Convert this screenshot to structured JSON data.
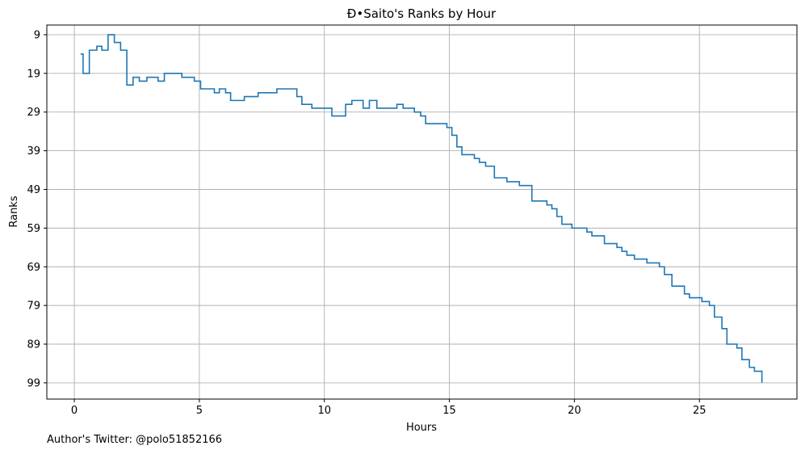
{
  "chart_data": {
    "type": "line",
    "drawstyle": "steps-post",
    "title": "Ð•Saito's Ranks by Hour",
    "xlabel": "Hours",
    "ylabel": "Ranks",
    "xlim": [
      -1.1,
      28.9
    ],
    "ylim": [
      103.2,
      6.5
    ],
    "y_inverted": true,
    "xticks": [
      0,
      5,
      10,
      15,
      20,
      25
    ],
    "yticks": [
      9,
      19,
      29,
      39,
      49,
      59,
      69,
      79,
      89,
      99
    ],
    "grid": true,
    "line_color": "#1f77b4",
    "series": [
      {
        "x": [
          0.25,
          0.35,
          0.6,
          0.9,
          1.1,
          1.35,
          1.6,
          1.85,
          2.1,
          2.35,
          2.6,
          2.9,
          3.35,
          3.6,
          4.3,
          4.8,
          5.05,
          5.6,
          5.8,
          6.05,
          6.25,
          6.8,
          7.35,
          8.1,
          8.9,
          9.1,
          9.5,
          10.3,
          10.85,
          11.1,
          11.55,
          11.8,
          12.1,
          12.9,
          13.15,
          13.6,
          13.85,
          14.05,
          14.9,
          15.1,
          15.3,
          15.5,
          16.0,
          16.2,
          16.45,
          16.8,
          17.3,
          17.8,
          18.3,
          18.9,
          19.1,
          19.3,
          19.5,
          19.9,
          20.5,
          20.7,
          21.2,
          21.7,
          21.9,
          22.1,
          22.4,
          22.9,
          23.4,
          23.6,
          23.9,
          24.4,
          24.6,
          25.1,
          25.4,
          25.6,
          25.9,
          26.1,
          26.5,
          26.7,
          27.0,
          27.2,
          27.5
        ],
        "y": [
          14,
          19,
          13,
          12,
          13,
          9,
          11,
          13,
          22,
          20,
          21,
          20,
          21,
          19,
          20,
          21,
          23,
          24,
          23,
          24,
          26,
          25,
          24,
          23,
          25,
          27,
          28,
          30,
          27,
          26,
          28,
          26,
          28,
          27,
          28,
          29,
          30,
          32,
          33,
          35,
          38,
          40,
          41,
          42,
          43,
          46,
          47,
          48,
          52,
          53,
          54,
          56,
          58,
          59,
          60,
          61,
          63,
          64,
          65,
          66,
          67,
          68,
          69,
          71,
          74,
          76,
          77,
          78,
          79,
          82,
          85,
          89,
          90,
          93,
          95,
          96,
          99
        ]
      }
    ]
  },
  "footnote": "Author's Twitter: @polo51852166"
}
